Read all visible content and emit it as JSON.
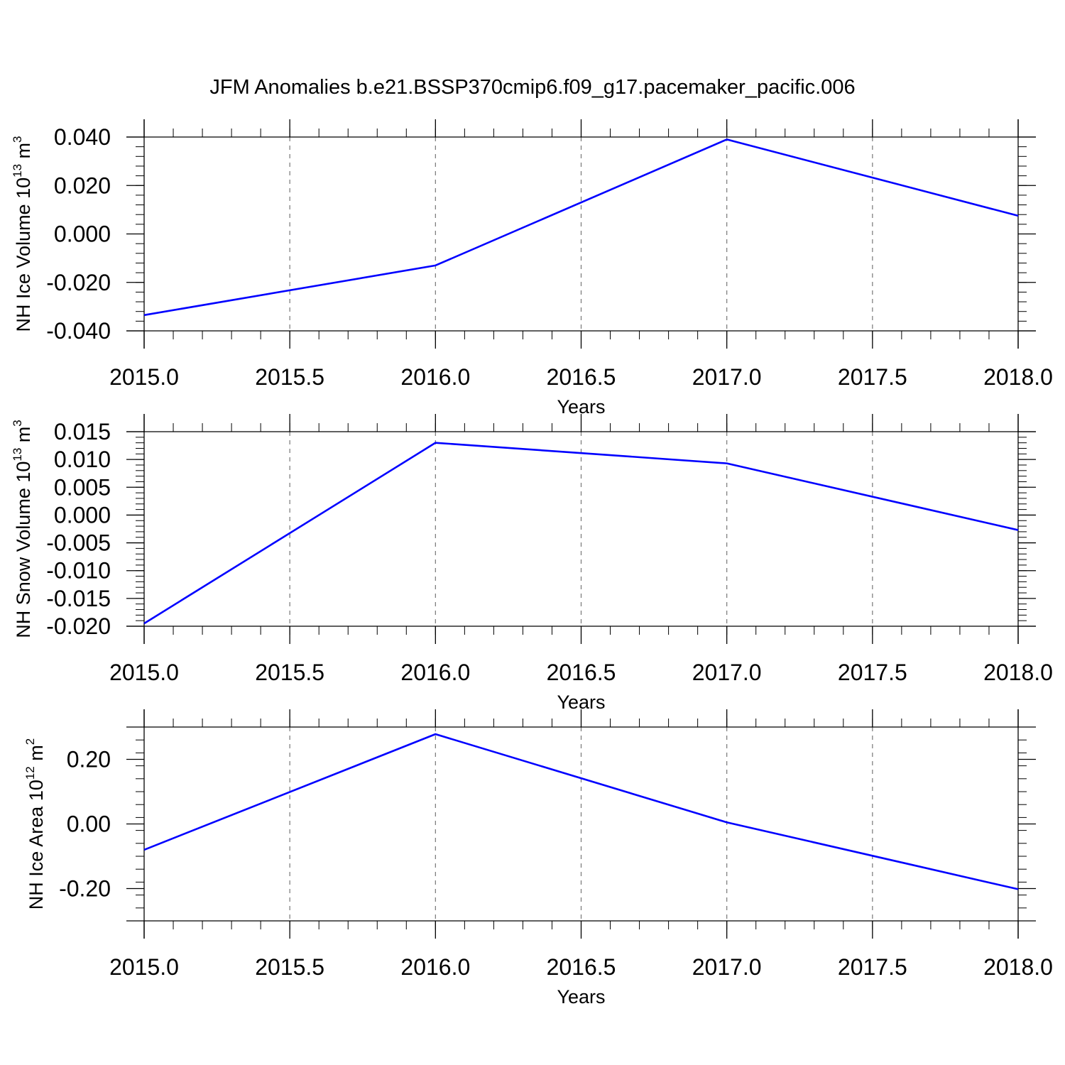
{
  "figure_title": "JFM Anomalies b.e21.BSSP370cmip6.f09_g17.pacemaker_pacific.006",
  "colors": {
    "series": "#0000ff",
    "grid": "#777777",
    "axes": "#000000"
  },
  "chart_data": [
    {
      "type": "line",
      "xlabel": "Years",
      "ylabel": {
        "text": "NH Ice Volume 10",
        "exp": "13",
        "unit": " m",
        "unit_exp": "3"
      },
      "xlim": [
        2015,
        2018
      ],
      "ylim": [
        -0.04,
        0.04
      ],
      "x_ticks": [
        2015.0,
        2015.5,
        2016.0,
        2016.5,
        2017.0,
        2017.5,
        2018.0
      ],
      "x_tick_labels": [
        "2015.0",
        "2015.5",
        "2016.0",
        "2016.5",
        "2017.0",
        "2017.5",
        "2018.0"
      ],
      "y_ticks": [
        -0.04,
        -0.02,
        0.0,
        0.02,
        0.04
      ],
      "y_tick_labels": [
        "-0.040",
        "-0.020",
        "0.000",
        "0.020",
        "0.040"
      ],
      "grid": "x-dashed",
      "series": [
        {
          "x": [
            2015,
            2016,
            2017,
            2018
          ],
          "values": [
            -0.0335,
            -0.013,
            0.039,
            0.0075
          ]
        }
      ]
    },
    {
      "type": "line",
      "xlabel": "Years",
      "ylabel": {
        "text": "NH Snow Volume 10",
        "exp": "13",
        "unit": " m",
        "unit_exp": "3"
      },
      "xlim": [
        2015,
        2018
      ],
      "ylim": [
        -0.02,
        0.015
      ],
      "x_ticks": [
        2015.0,
        2015.5,
        2016.0,
        2016.5,
        2017.0,
        2017.5,
        2018.0
      ],
      "x_tick_labels": [
        "2015.0",
        "2015.5",
        "2016.0",
        "2016.5",
        "2017.0",
        "2017.5",
        "2018.0"
      ],
      "y_ticks": [
        -0.02,
        -0.015,
        -0.01,
        -0.005,
        0.0,
        0.005,
        0.01,
        0.015
      ],
      "y_tick_labels": [
        "-0.020",
        "-0.015",
        "-0.010",
        "-0.005",
        "0.000",
        "0.005",
        "0.010",
        "0.015"
      ],
      "grid": "x-dashed",
      "series": [
        {
          "x": [
            2015,
            2016,
            2017,
            2018
          ],
          "values": [
            -0.0195,
            0.013,
            0.0093,
            -0.0027
          ]
        }
      ]
    },
    {
      "type": "line",
      "xlabel": "Years",
      "ylabel": {
        "text": "NH Ice Area 10",
        "exp": "12",
        "unit": " m",
        "unit_exp": "2"
      },
      "xlim": [
        2015,
        2018
      ],
      "ylim": [
        -0.3,
        0.3
      ],
      "x_ticks": [
        2015.0,
        2015.5,
        2016.0,
        2016.5,
        2017.0,
        2017.5,
        2018.0
      ],
      "x_tick_labels": [
        "2015.0",
        "2015.5",
        "2016.0",
        "2016.5",
        "2017.0",
        "2017.5",
        "2018.0"
      ],
      "y_ticks": [
        -0.2,
        0.0,
        0.2
      ],
      "y_tick_labels": [
        "-0.20",
        "0.00",
        "0.20"
      ],
      "grid": "x-dashed",
      "series": [
        {
          "x": [
            2015,
            2016,
            2017,
            2018
          ],
          "values": [
            -0.08,
            0.278,
            0.005,
            -0.202
          ]
        }
      ]
    }
  ]
}
